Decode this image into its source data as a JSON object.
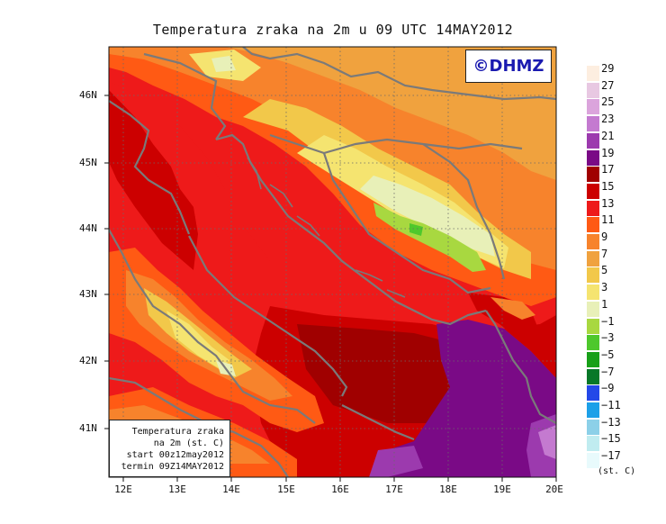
{
  "title": "Temperatura zraka na 2m u 09 UTC 14MAY2012",
  "copyright": "©DHMZ",
  "info_box": {
    "line1": "Temperatura zraka",
    "line2": "na 2m (st. C)",
    "line3": "start 00z12may2012",
    "line4": "termin 09Z14MAY2012"
  },
  "lat_labels": [
    "46N",
    "45N",
    "44N",
    "43N",
    "42N",
    "41N"
  ],
  "lon_labels": [
    "12E",
    "13E",
    "14E",
    "15E",
    "16E",
    "17E",
    "18E",
    "19E",
    "20E"
  ],
  "legend": {
    "unit": "(st. C)",
    "labels": [
      "29",
      "27",
      "25",
      "23",
      "21",
      "19",
      "17",
      "15",
      "13",
      "11",
      "9",
      "7",
      "5",
      "3",
      "1",
      "−1",
      "−3",
      "−5",
      "−7",
      "−9",
      "−11",
      "−13",
      "−15",
      "−17"
    ],
    "colors": [
      "#fdeee0",
      "#e8c8e2",
      "#dba4dc",
      "#c47ad0",
      "#9c3aae",
      "#7a0a86",
      "#a00000",
      "#cc0000",
      "#ee1a1a",
      "#ff5a14",
      "#f7832c",
      "#f0a23e",
      "#f2c84a",
      "#f5e470",
      "#e8f0b8",
      "#a8d840",
      "#4ec82c",
      "#18a018",
      "#087828",
      "#2448e8",
      "#1ca0e8",
      "#8cd0e8",
      "#c0ecf0",
      "#e8fafc"
    ]
  },
  "map_colors": {
    "sea": "#ee1a1a",
    "warm_sea": "#cc0000",
    "deep_warm": "#a00000",
    "coast_orange": "#ff5a14",
    "land_orange": "#f7832c",
    "land_light_orange": "#f0a23e",
    "land_yellow": "#f2c84a",
    "land_pale": "#f5e470",
    "land_cream": "#e8f0b8",
    "land_green": "#a8d840",
    "land_mid_green": "#4ec82c",
    "purple": "#7a0a86",
    "violet": "#9c3aae",
    "lilac": "#c47ad0",
    "border": "#7a7a7a"
  }
}
